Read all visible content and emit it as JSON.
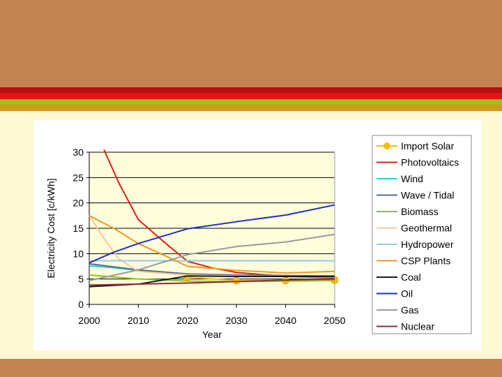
{
  "chart_data": {
    "type": "line",
    "title": "",
    "xlabel": "Year",
    "ylabel": "Electricity Cost [c/kWh]",
    "x_ticks": [
      2000,
      2010,
      2020,
      2030,
      2040,
      2050
    ],
    "y_ticks": [
      0,
      5,
      10,
      15,
      20,
      25,
      30
    ],
    "xlim": [
      2000,
      2050
    ],
    "ylim": [
      0,
      30
    ],
    "grid": "horizontal",
    "legend_position": "right",
    "series": [
      {
        "name": "Import Solar",
        "color": "#f2c00e",
        "markers": true,
        "x": [
          2020,
          2030,
          2040,
          2050
        ],
        "y": [
          5.4,
          4.7,
          4.7,
          4.8
        ]
      },
      {
        "name": "Photovoltaics",
        "color": "#d8211a",
        "markers": false,
        "x": [
          2003,
          2006,
          2010,
          2015,
          2020,
          2025,
          2030,
          2040,
          2050
        ],
        "y": [
          30.5,
          24,
          16.7,
          12.5,
          8.5,
          7.2,
          6.3,
          5.5,
          5.2
        ]
      },
      {
        "name": "Wind",
        "color": "#1fd1e0",
        "markers": false,
        "x": [
          2000,
          2005,
          2010,
          2020,
          2030,
          2040,
          2050
        ],
        "y": [
          7.6,
          7.2,
          6.7,
          6.0,
          5.7,
          5.5,
          5.4
        ]
      },
      {
        "name": "Wave / Tidal",
        "color": "#5a6b8c",
        "markers": false,
        "x": [
          2000,
          2010,
          2020,
          2030,
          2040,
          2050
        ],
        "y": [
          8.0,
          6.8,
          6.0,
          5.8,
          5.7,
          5.6
        ]
      },
      {
        "name": "Biomass",
        "color": "#8fc31f",
        "markers": false,
        "x": [
          2000,
          2010,
          2020,
          2030,
          2040,
          2050
        ],
        "y": [
          5.8,
          5.0,
          4.6,
          4.5,
          4.6,
          4.7
        ]
      },
      {
        "name": "Geothermal",
        "color": "#f6c79c",
        "markers": false,
        "x": [
          2000,
          2003,
          2006,
          2010,
          2020,
          2030,
          2040,
          2050
        ],
        "y": [
          17.5,
          13,
          9,
          6.5,
          5.8,
          5.6,
          5.5,
          5.4
        ]
      },
      {
        "name": "Hydropower",
        "color": "#99c7e8",
        "markers": false,
        "x": [
          2000,
          2010,
          2020,
          2030,
          2040,
          2050
        ],
        "y": [
          8.6,
          8.6,
          8.6,
          8.6,
          8.6,
          8.6
        ]
      },
      {
        "name": "CSP Plants",
        "color": "#f0981e",
        "markers": false,
        "x": [
          2000,
          2005,
          2010,
          2015,
          2020,
          2030,
          2040,
          2050
        ],
        "y": [
          17.5,
          15,
          12,
          9.8,
          7.5,
          6.7,
          6.2,
          6.5
        ]
      },
      {
        "name": "Coal",
        "color": "#1a1a1a",
        "markers": false,
        "x": [
          2000,
          2010,
          2020,
          2030,
          2040,
          2050
        ],
        "y": [
          3.5,
          4.0,
          5.6,
          5.5,
          5.5,
          5.5
        ]
      },
      {
        "name": "Oil",
        "color": "#1f2ec4",
        "markers": false,
        "x": [
          2000,
          2005,
          2010,
          2020,
          2030,
          2040,
          2050
        ],
        "y": [
          8.2,
          10.3,
          12.0,
          14.9,
          16.3,
          17.6,
          19.6
        ]
      },
      {
        "name": "Gas",
        "color": "#9a9a9a",
        "markers": false,
        "x": [
          2000,
          2010,
          2020,
          2030,
          2040,
          2050
        ],
        "y": [
          4.7,
          6.8,
          9.8,
          11.4,
          12.3,
          13.8
        ]
      },
      {
        "name": "Nuclear",
        "color": "#8a2a3f",
        "markers": false,
        "x": [
          2000,
          2010,
          2020,
          2030,
          2040,
          2050
        ],
        "y": [
          3.8,
          4.0,
          4.2,
          4.5,
          4.8,
          5.0
        ]
      }
    ]
  }
}
